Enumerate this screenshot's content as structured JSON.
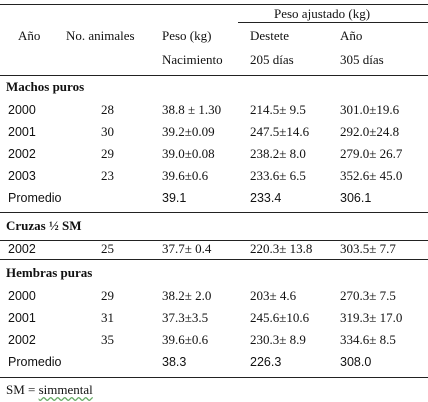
{
  "header": {
    "group": "Peso ajustado (kg)",
    "columns": [
      "Año",
      "No. animales",
      "Peso (kg)",
      "Destete",
      "Año"
    ],
    "subcolumns": [
      "Nacimiento",
      "205 días",
      "305 días"
    ]
  },
  "sections": [
    {
      "title": "Machos puros",
      "rows": [
        {
          "year": "2000",
          "n": "28",
          "birth": "38.8 ± 1.30",
          "weaning": "214.5± 9.5",
          "adjusted": "301.0±19.6"
        },
        {
          "year": "2001",
          "n": "30",
          "birth": "39.2±0.09",
          "weaning": "247.5±14.6",
          "adjusted": "292.0±24.8"
        },
        {
          "year": "2002",
          "n": "29",
          "birth": "39.0±0.08",
          "weaning": "238.2± 8.0",
          "adjusted": "279.0± 26.7"
        },
        {
          "year": "2003",
          "n": "23",
          "birth": "39.6±0.6",
          "weaning": "233.6± 6.5",
          "adjusted": "352.6± 45.0"
        }
      ],
      "average": {
        "label": "Promedio",
        "birth": "39.1",
        "weaning": "233.4",
        "adjusted": "306.1"
      }
    },
    {
      "title": "Cruzas ½ SM",
      "rows": [
        {
          "year": "2002",
          "n": "25",
          "birth": "37.7± 0.4",
          "weaning": "220.3± 13.8",
          "adjusted": "303.5± 7.7"
        }
      ]
    },
    {
      "title": "Hembras puras",
      "rows": [
        {
          "year": "2000",
          "n": "29",
          "birth": "38.2± 2.0",
          "weaning": "203± 4.6",
          "adjusted": "270.3± 7.5"
        },
        {
          "year": "2001",
          "n": "31",
          "birth": "37.3±3.5",
          "weaning": "245.6±10.6",
          "adjusted": "319.3± 17.0"
        },
        {
          "year": "2002",
          "n": "35",
          "birth": "39.6±0.6",
          "weaning": "230.3± 8.9",
          "adjusted": "334.6± 8.5"
        }
      ],
      "average": {
        "label": "Promedio",
        "birth": "38.3",
        "weaning": "226.3",
        "adjusted": "308.0"
      }
    }
  ],
  "footnote": {
    "abbr": "SM = ",
    "term": "simmental"
  }
}
